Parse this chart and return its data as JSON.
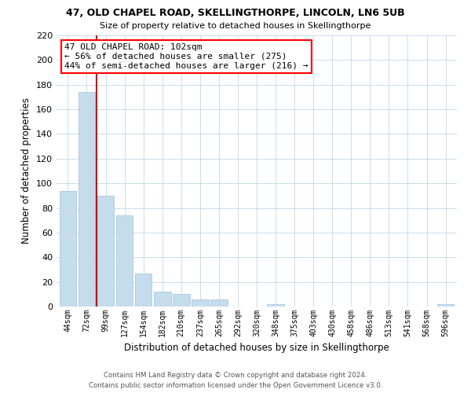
{
  "title": "47, OLD CHAPEL ROAD, SKELLINGTHORPE, LINCOLN, LN6 5UB",
  "subtitle": "Size of property relative to detached houses in Skellingthorpe",
  "xlabel": "Distribution of detached houses by size in Skellingthorpe",
  "ylabel": "Number of detached properties",
  "bar_color": "#c5dced",
  "bar_edge_color": "#a8c8e0",
  "grid_color": "#c8dce8",
  "categories": [
    "44sqm",
    "72sqm",
    "99sqm",
    "127sqm",
    "154sqm",
    "182sqm",
    "210sqm",
    "237sqm",
    "265sqm",
    "292sqm",
    "320sqm",
    "348sqm",
    "375sqm",
    "403sqm",
    "430sqm",
    "458sqm",
    "486sqm",
    "513sqm",
    "541sqm",
    "568sqm",
    "596sqm"
  ],
  "values": [
    94,
    174,
    90,
    74,
    27,
    12,
    10,
    6,
    6,
    0,
    0,
    2,
    0,
    0,
    0,
    0,
    0,
    0,
    0,
    0,
    2
  ],
  "ylim": [
    0,
    220
  ],
  "yticks": [
    0,
    20,
    40,
    60,
    80,
    100,
    120,
    140,
    160,
    180,
    200,
    220
  ],
  "property_line_color": "#cc0000",
  "annotation_text": "47 OLD CHAPEL ROAD: 102sqm\n← 56% of detached houses are smaller (275)\n44% of semi-detached houses are larger (216) →",
  "footer_line1": "Contains HM Land Registry data © Crown copyright and database right 2024.",
  "footer_line2": "Contains public sector information licensed under the Open Government Licence v3.0.",
  "background_color": "#ffffff"
}
